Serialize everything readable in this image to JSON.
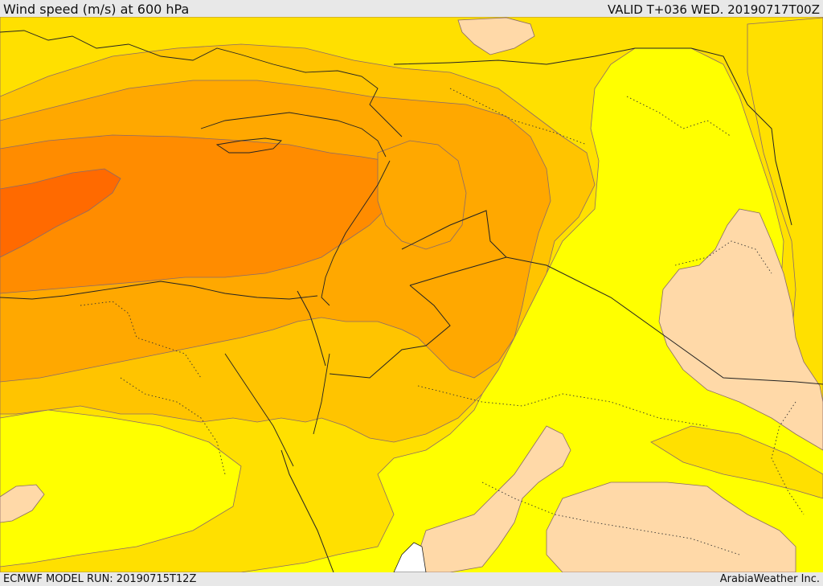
{
  "header": {
    "title": "Wind speed (m/s) at 600 hPa",
    "valid": "VALID T+036 WED. 20190717T00Z"
  },
  "footer": {
    "model_run": "ECMWF MODEL RUN: 20190715T12Z",
    "credit": "ArabiaWeather Inc."
  },
  "map": {
    "field": "wind speed",
    "level": "600 hPa",
    "palette": [
      "#ffd9a8",
      "#ffff00",
      "#ffe000",
      "#ffc400",
      "#ffa800",
      "#ff8c00",
      "#ff6a00"
    ]
  }
}
